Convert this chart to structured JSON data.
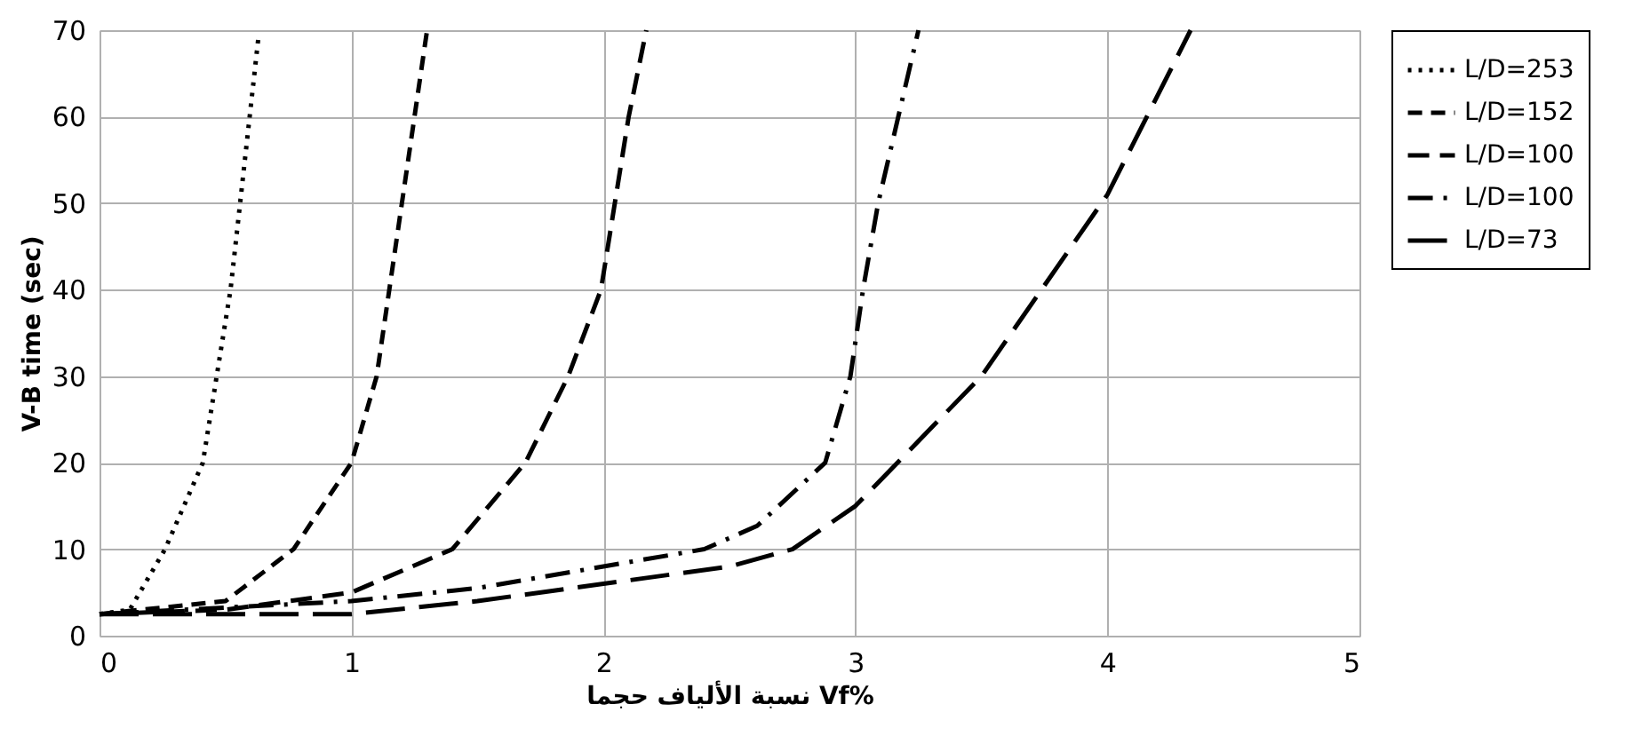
{
  "chart_data": {
    "type": "line",
    "xlabel": "نسبة الألياف حجما Vf%",
    "ylabel": "V-B time (sec)",
    "xlim": [
      0,
      5
    ],
    "xticks": [
      0,
      1,
      2,
      3,
      4,
      5
    ],
    "ylim": [
      0,
      70
    ],
    "yticks": [
      0,
      10,
      20,
      30,
      40,
      50,
      60,
      70
    ],
    "grid": true,
    "legend": "right",
    "marker": "none",
    "series": [
      {
        "name": "L/D=253",
        "color": "#000000",
        "line_style": "dotted",
        "x": [
          0,
          0.12,
          0.26,
          0.41,
          0.52,
          0.63
        ],
        "values": [
          2.5,
          3,
          10,
          20,
          40,
          69
        ]
      },
      {
        "name": "L/D=152",
        "color": "#000000",
        "line_style": "dashed",
        "x": [
          0,
          0.5,
          0.77,
          1.0,
          1.1,
          1.2,
          1.3
        ],
        "values": [
          2.5,
          4,
          10,
          20,
          30,
          50,
          70
        ]
      },
      {
        "name": "L/D=100",
        "color": "#000000",
        "line_style": "dashed",
        "x": [
          0,
          0.5,
          1,
          1.4,
          1.69,
          1.86,
          1.99,
          2.1,
          2.17
        ],
        "values": [
          2.5,
          3,
          5,
          10,
          20,
          30,
          40,
          60,
          70
        ]
      },
      {
        "name": "L/D=100",
        "color": "#000000",
        "line_style": "dashed",
        "x": [
          0,
          1,
          1.5,
          2,
          2.4,
          2.61,
          2.88,
          2.98,
          3.03,
          3.09,
          3.17,
          3.25
        ],
        "values": [
          2.5,
          4,
          5.5,
          8,
          10,
          12.7,
          20,
          30,
          40,
          50,
          60,
          70
        ]
      },
      {
        "name": "L/D=73",
        "color": "#000000",
        "line_style": "dashed",
        "x": [
          0,
          1,
          1.5,
          2,
          2.5,
          2.75,
          3,
          3.5,
          4,
          4.33
        ],
        "values": [
          2.5,
          2.5,
          4,
          6,
          8,
          10,
          15,
          30,
          51,
          70
        ]
      }
    ]
  }
}
